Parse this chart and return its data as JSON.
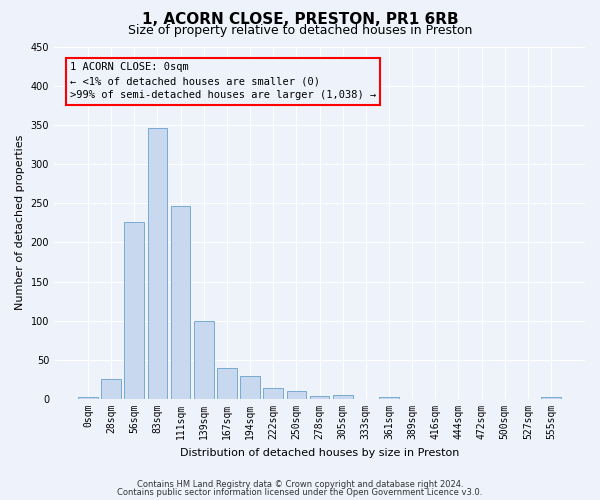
{
  "title": "1, ACORN CLOSE, PRESTON, PR1 6RB",
  "subtitle": "Size of property relative to detached houses in Preston",
  "xlabel": "Distribution of detached houses by size in Preston",
  "ylabel": "Number of detached properties",
  "bar_color": "#c8d8ee",
  "bar_edge_color": "#7aaad0",
  "background_color": "#eef2fa",
  "grid_color": "#ffffff",
  "categories": [
    "0sqm",
    "28sqm",
    "56sqm",
    "83sqm",
    "111sqm",
    "139sqm",
    "167sqm",
    "194sqm",
    "222sqm",
    "250sqm",
    "278sqm",
    "305sqm",
    "333sqm",
    "361sqm",
    "389sqm",
    "416sqm",
    "444sqm",
    "472sqm",
    "500sqm",
    "527sqm",
    "555sqm"
  ],
  "values": [
    2,
    25,
    226,
    346,
    247,
    100,
    40,
    30,
    14,
    10,
    4,
    5,
    0,
    3,
    0,
    0,
    0,
    0,
    0,
    0,
    2
  ],
  "ylim": [
    0,
    450
  ],
  "yticks": [
    0,
    50,
    100,
    150,
    200,
    250,
    300,
    350,
    400,
    450
  ],
  "annotation_text": "1 ACORN CLOSE: 0sqm\n← <1% of detached houses are smaller (0)\n>99% of semi-detached houses are larger (1,038) →",
  "footer_line1": "Contains HM Land Registry data © Crown copyright and database right 2024.",
  "footer_line2": "Contains public sector information licensed under the Open Government Licence v3.0.",
  "title_fontsize": 11,
  "subtitle_fontsize": 9,
  "axis_label_fontsize": 8,
  "tick_fontsize": 7,
  "annotation_fontsize": 7.5,
  "footer_fontsize": 6
}
